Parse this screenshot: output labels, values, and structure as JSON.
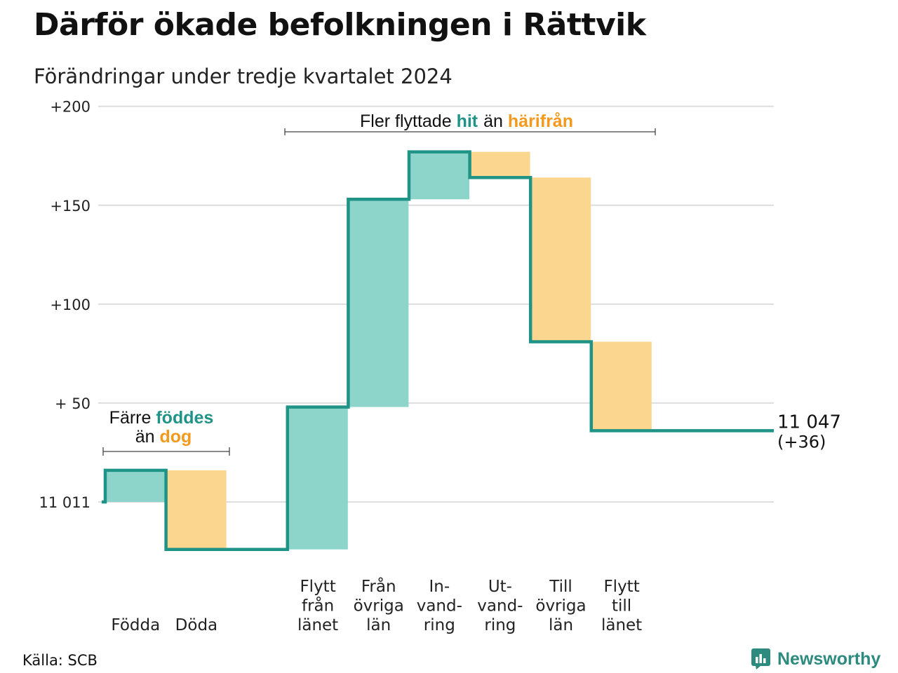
{
  "title": "Därför ökade befolkningen i Rättvik",
  "subtitle": "Förändringar under tredje kvartalet 2024",
  "source": "Källa: SCB",
  "logo": "Newsworthy",
  "colors": {
    "increase": "#8dd5cb",
    "decrease": "#fad68e",
    "line": "#1f9486",
    "hit_text": "#1f9486",
    "away_text": "#f39a1e",
    "grid": "#dddddd"
  },
  "annotations": {
    "births_vs_deaths": {
      "part1": "Färre ",
      "highlight1": "föddes",
      "part2": "än ",
      "highlight2": "dog"
    },
    "moves": {
      "part1": "Fler flyttade ",
      "highlight1": "hit",
      "part2": "än ",
      "highlight2": "härifrån"
    }
  },
  "chart_data": {
    "type": "waterfall",
    "base_value": 11011,
    "base_label": "11 011",
    "end_value": 11047,
    "end_label": "11 047",
    "end_change_label": "(+36)",
    "yticks": [
      {
        "value": 0,
        "label": "11 011"
      },
      {
        "value": 50,
        "label": "+ 50"
      },
      {
        "value": 100,
        "label": "+100"
      },
      {
        "value": 150,
        "label": "+150"
      },
      {
        "value": 200,
        "label": "+200"
      }
    ],
    "ylim": [
      -30,
      200
    ],
    "grid": true,
    "steps": [
      {
        "category": [
          "Födda"
        ],
        "change": 16,
        "direction": "in"
      },
      {
        "category": [
          "Döda"
        ],
        "change": -40,
        "direction": "out"
      },
      {
        "category": [],
        "change": 0,
        "direction": "gap"
      },
      {
        "category": [
          "Flytt",
          "från",
          "länet"
        ],
        "change": 72,
        "direction": "in"
      },
      {
        "category": [
          "Från",
          "övriga",
          "län"
        ],
        "change": 105,
        "direction": "in"
      },
      {
        "category": [
          "In-",
          "vand-",
          "ring"
        ],
        "change": 24,
        "direction": "in"
      },
      {
        "category": [
          "Ut-",
          "vand-",
          "ring"
        ],
        "change": -13,
        "direction": "out"
      },
      {
        "category": [
          "Till",
          "övriga",
          "län"
        ],
        "change": -83,
        "direction": "out"
      },
      {
        "category": [
          "Flytt",
          "till",
          "länet"
        ],
        "change": -45,
        "direction": "out"
      }
    ]
  }
}
